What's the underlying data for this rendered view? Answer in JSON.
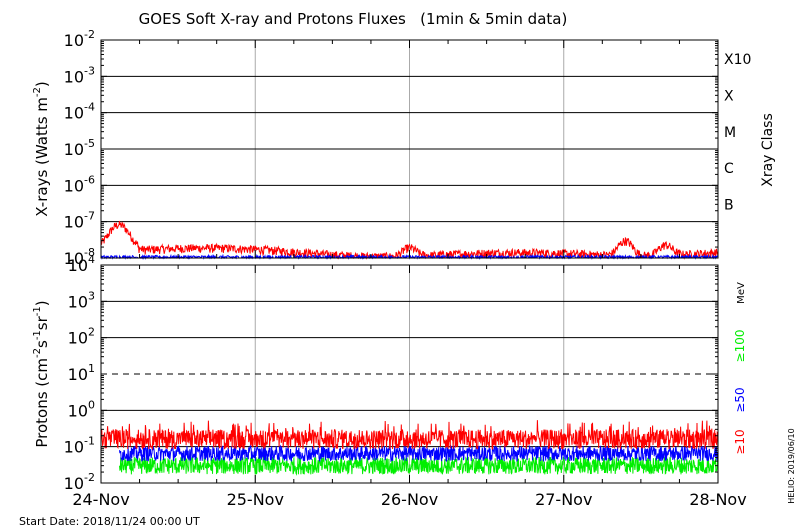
{
  "title": "GOES Soft X-ray and Protons Fluxes   (1min & 5min data)",
  "start_date_label": "Start Date: 2018/11/24 00:00 UT",
  "credit": "HELIO: 2019/06/10",
  "chart_data": [
    {
      "type": "line",
      "name": "xray-panel",
      "ylabel_main": "X-rays (Watts m",
      "ylabel_exp": "-2",
      "ylabel_close": ")",
      "yscale": "log",
      "ylim": [
        1e-08,
        0.01
      ],
      "yticks": [
        {
          "base": "10",
          "exp": "-8",
          "value": 1e-08
        },
        {
          "base": "10",
          "exp": "-7",
          "value": 1e-07
        },
        {
          "base": "10",
          "exp": "-6",
          "value": 1e-06
        },
        {
          "base": "10",
          "exp": "-5",
          "value": 1e-05
        },
        {
          "base": "10",
          "exp": "-4",
          "value": 0.0001
        },
        {
          "base": "10",
          "exp": "-3",
          "value": 0.001
        },
        {
          "base": "10",
          "exp": "-2",
          "value": 0.01
        }
      ],
      "right_axis_label": "Xray Class",
      "classes": [
        {
          "label": "B",
          "value": 1e-07
        },
        {
          "label": "C",
          "value": 1e-06
        },
        {
          "label": "M",
          "value": 1e-05
        },
        {
          "label": "X",
          "value": 0.0001
        },
        {
          "label": "X10",
          "value": 0.001
        }
      ],
      "grid": true,
      "series": [
        {
          "color": "#ff0000",
          "baseline": 1.4e-08,
          "peaks": [
            [
              0.03,
              6e-08
            ],
            [
              0.5,
              2.2e-08
            ],
            [
              0.85,
              3.2e-08
            ],
            [
              0.915,
              2.5e-08
            ]
          ]
        },
        {
          "color": "#0000ff",
          "baseline": 1e-08,
          "peaks": [
            [
              0.05,
              1.2e-08
            ]
          ]
        }
      ]
    },
    {
      "type": "line",
      "name": "proton-panel",
      "ylabel_main": "Protons (cm",
      "ylabel_exp1": "-2",
      "ylabel_mid": "s",
      "ylabel_exp2": "-1",
      "ylabel_mid2": "sr",
      "ylabel_exp3": "-1",
      "ylabel_close": ")",
      "yscale": "log",
      "ylim": [
        0.01,
        10000
      ],
      "yticks": [
        {
          "base": "10",
          "exp": "-2",
          "value": 0.01
        },
        {
          "base": "10",
          "exp": "-1",
          "value": 0.1
        },
        {
          "base": "10",
          "exp": "0",
          "value": 1
        },
        {
          "base": "10",
          "exp": "1",
          "value": 10
        },
        {
          "base": "10",
          "exp": "2",
          "value": 100
        },
        {
          "base": "10",
          "exp": "3",
          "value": 1000
        },
        {
          "base": "10",
          "exp": "4",
          "value": 10000
        }
      ],
      "threshold_value": 10,
      "unit_label": "MeV",
      "series": [
        {
          "name": "≥10",
          "color": "#ff0000",
          "baseline": 0.16
        },
        {
          "name": "≥50",
          "color": "#0000ff",
          "baseline": 0.065
        },
        {
          "name": "≥100",
          "color": "#00ee00",
          "baseline": 0.03
        }
      ],
      "grid": true
    }
  ],
  "x_axis": {
    "range": [
      "2018-11-24",
      "2018-11-28"
    ],
    "ticks": [
      "24-Nov",
      "25-Nov",
      "26-Nov",
      "27-Nov",
      "28-Nov"
    ]
  }
}
